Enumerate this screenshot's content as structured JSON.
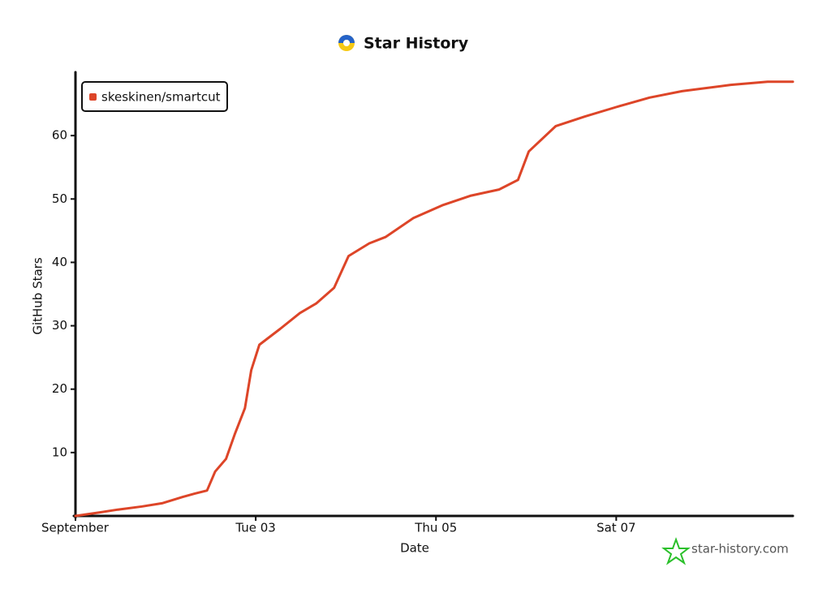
{
  "chart_data": {
    "type": "line",
    "title": "Star History",
    "x_label": "Date",
    "y_label": "GitHub Stars",
    "x": [
      1,
      1.24,
      1.47,
      1.74,
      1.96,
      2.19,
      2.32,
      2.46,
      2.55,
      2.67,
      2.77,
      2.88,
      2.95,
      3.04,
      3.27,
      3.49,
      3.67,
      3.87,
      4.03,
      4.26,
      4.44,
      4.75,
      5.07,
      5.38,
      5.7,
      5.91,
      6.03,
      6.33,
      6.65,
      7.0,
      7.37,
      7.73,
      8.27,
      8.68,
      8.96
    ],
    "series": [
      {
        "name": "skeskinen/smartcut",
        "color": "#dd4528",
        "values": [
          0,
          0.5,
          1,
          1.5,
          2,
          3,
          3.5,
          4,
          7,
          9,
          13,
          17,
          23,
          27,
          29.5,
          32,
          33.5,
          36,
          41,
          43,
          44,
          47,
          49,
          50.5,
          51.5,
          53,
          57.5,
          61.5,
          63,
          64.5,
          66,
          67,
          68,
          68.5,
          68.5
        ]
      }
    ],
    "xlim": [
      1,
      8.96
    ],
    "xticks": [
      {
        "value": 1,
        "label": "September"
      },
      {
        "value": 3,
        "label": "Tue 03"
      },
      {
        "value": 5,
        "label": "Thu 05"
      },
      {
        "value": 7,
        "label": "Sat 07"
      }
    ],
    "ylim": [
      0,
      70
    ],
    "yticks": [
      10,
      20,
      30,
      40,
      50,
      60
    ],
    "legend": "top-left",
    "watermark": "star-history.com"
  }
}
